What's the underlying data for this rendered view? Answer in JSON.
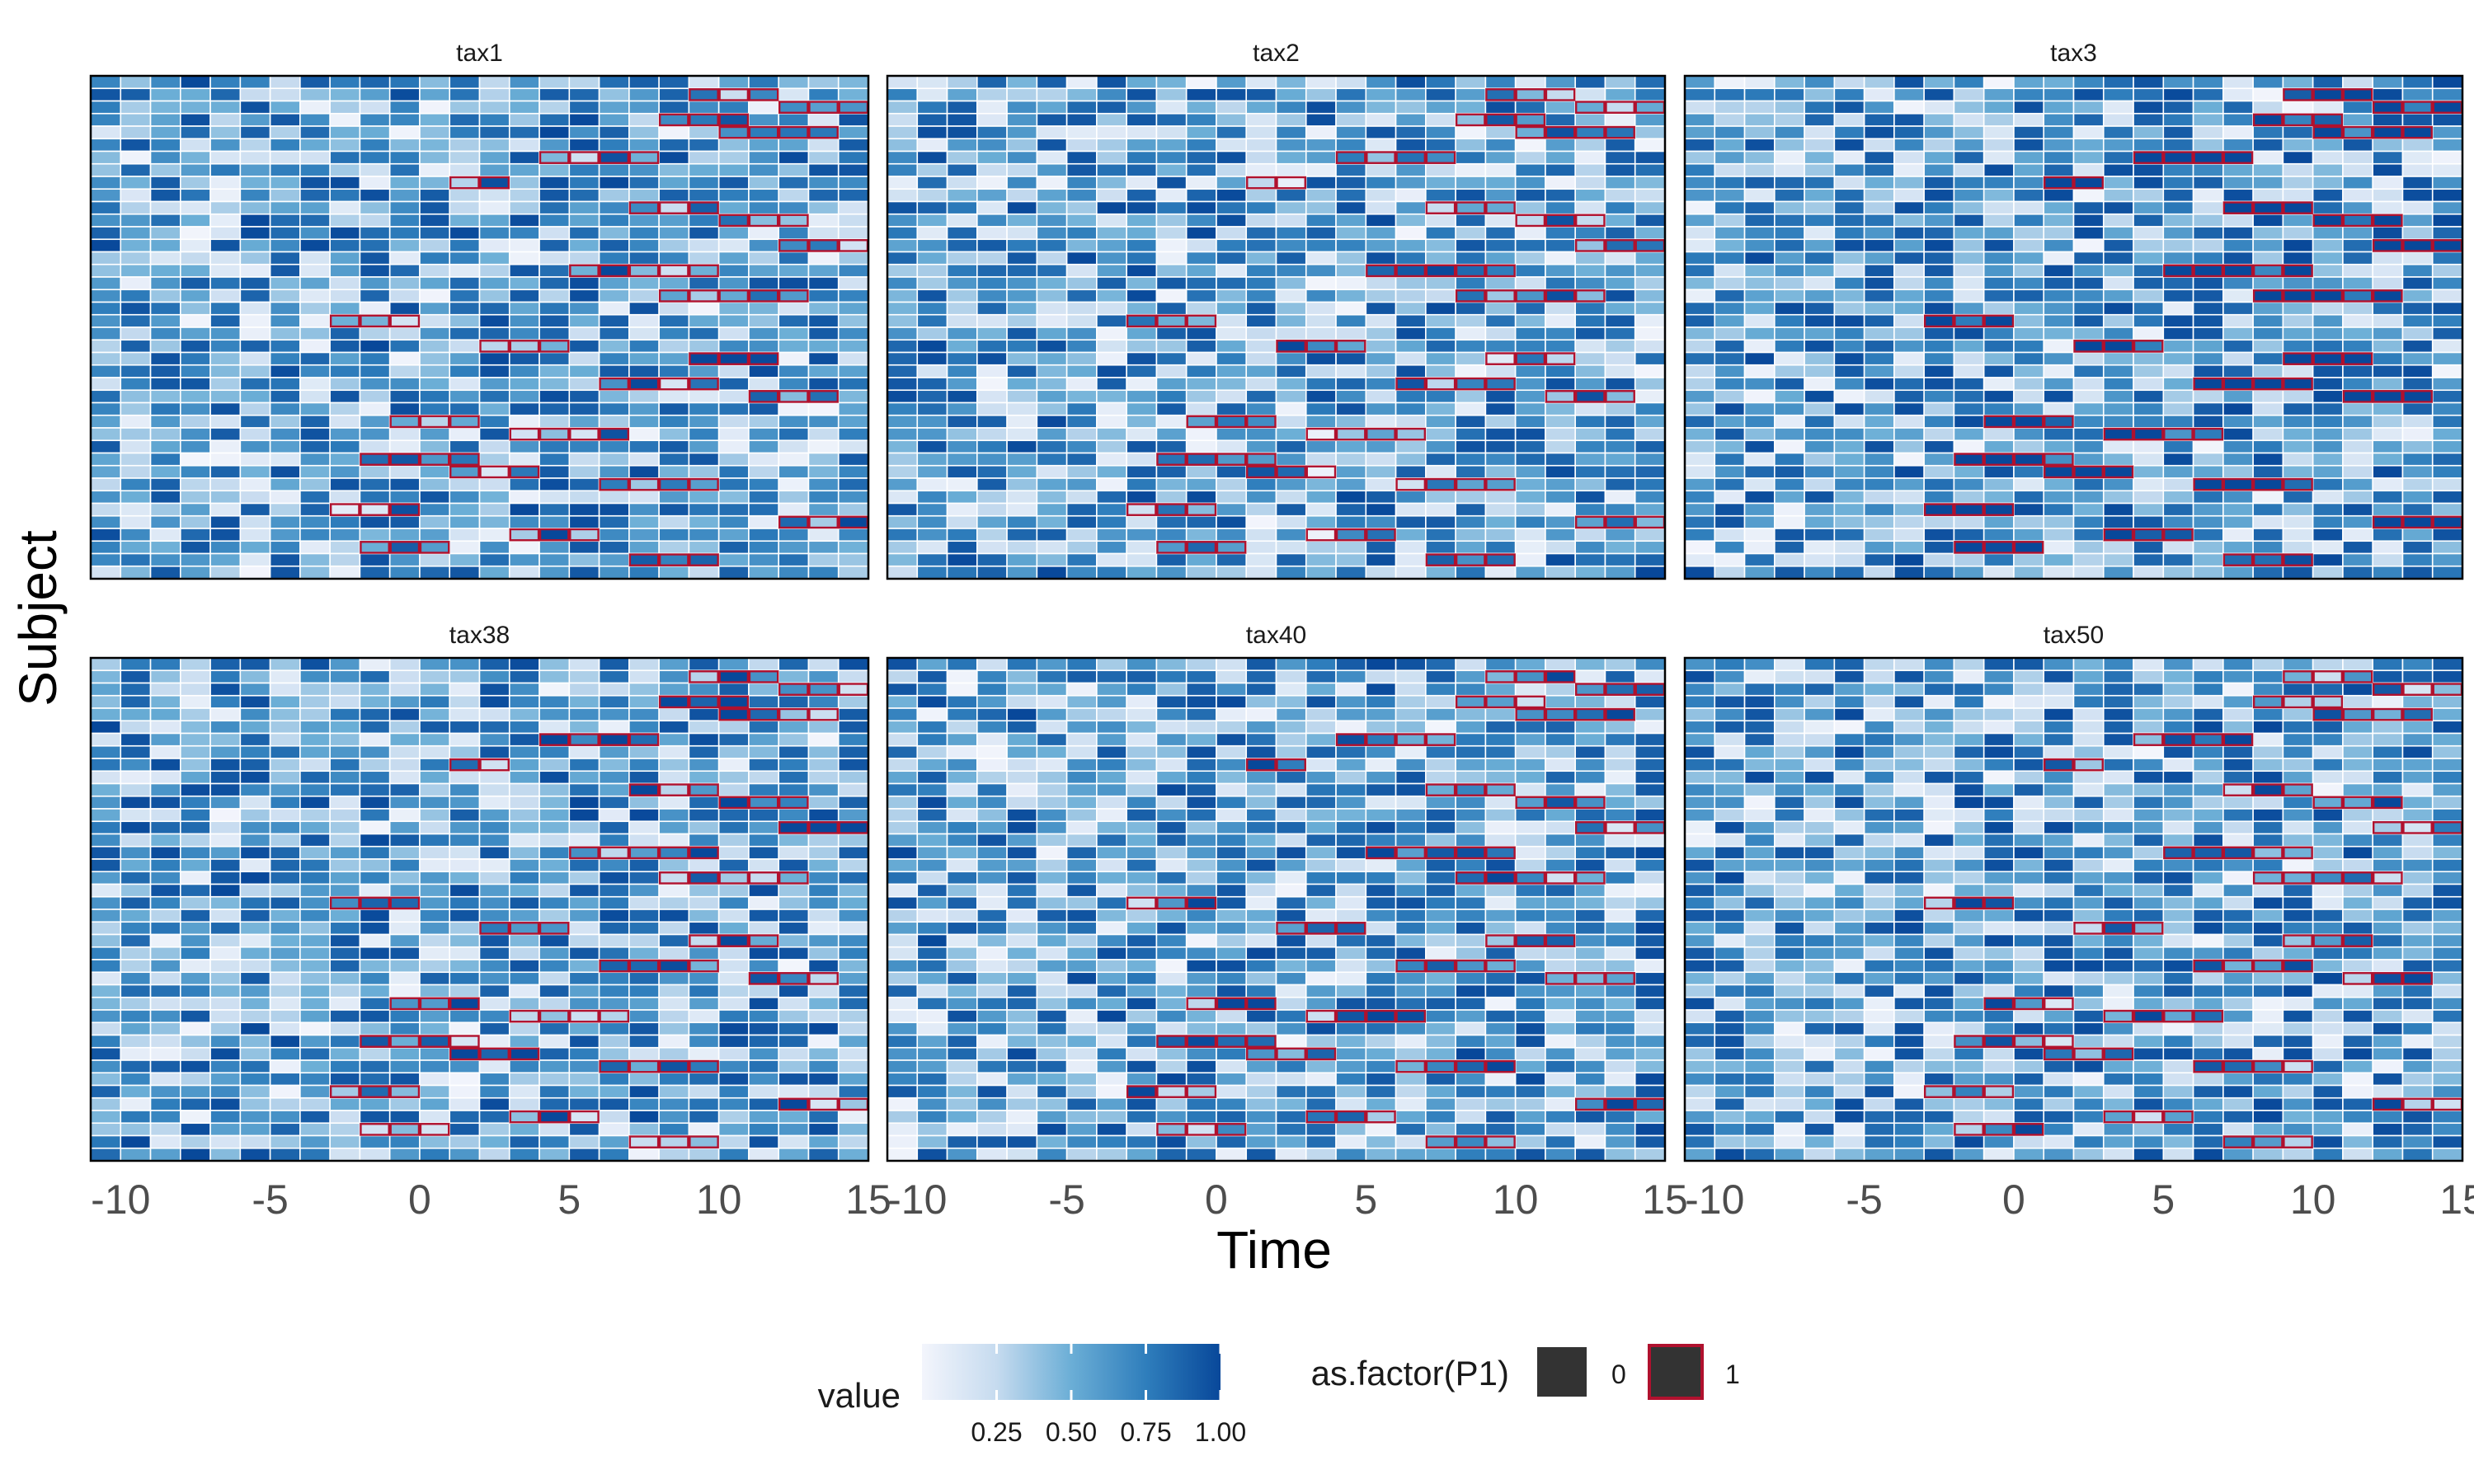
{
  "chart_data": {
    "type": "heatmap",
    "facet_titles": [
      "tax1",
      "tax2",
      "tax3",
      "tax38",
      "tax40",
      "tax50"
    ],
    "xlabel": "Time",
    "ylabel": "Subject",
    "xlim": [
      -11,
      15
    ],
    "x_ticks": [
      -10,
      -5,
      0,
      5,
      10,
      15
    ],
    "x_tick_labels": [
      "-10",
      "-5",
      "0",
      "5",
      "10",
      "15"
    ],
    "n_subjects": 40,
    "color_legend": {
      "title": "value",
      "range": [
        0,
        1
      ],
      "ticks": [
        0.25,
        0.5,
        0.75,
        1.0
      ],
      "tick_labels": [
        "0.25",
        "0.50",
        "0.75",
        "1.00"
      ],
      "low_color": "#f2f4fb",
      "high_color": "#08519c"
    },
    "outline_legend": {
      "title": "as.factor(P1)",
      "levels": [
        "0",
        "1"
      ],
      "outline_colors": [
        "#ffffff",
        "#b0112e"
      ],
      "fill": "#333333"
    },
    "p1_runs": [
      [
        1,
        9,
        3
      ],
      [
        2,
        12,
        3
      ],
      [
        3,
        8,
        3
      ],
      [
        4,
        10,
        4
      ],
      [
        6,
        4,
        4
      ],
      [
        8,
        1,
        2
      ],
      [
        10,
        7,
        3
      ],
      [
        11,
        10,
        3
      ],
      [
        13,
        12,
        3
      ],
      [
        15,
        5,
        5
      ],
      [
        17,
        8,
        5
      ],
      [
        19,
        -3,
        3
      ],
      [
        21,
        2,
        3
      ],
      [
        22,
        9,
        3
      ],
      [
        24,
        6,
        4
      ],
      [
        25,
        11,
        3
      ],
      [
        27,
        -1,
        3
      ],
      [
        28,
        3,
        4
      ],
      [
        30,
        -2,
        4
      ],
      [
        31,
        1,
        3
      ],
      [
        32,
        6,
        4
      ],
      [
        34,
        -3,
        3
      ],
      [
        35,
        12,
        4
      ],
      [
        36,
        3,
        3
      ],
      [
        37,
        -2,
        3
      ],
      [
        38,
        7,
        3
      ]
    ]
  }
}
